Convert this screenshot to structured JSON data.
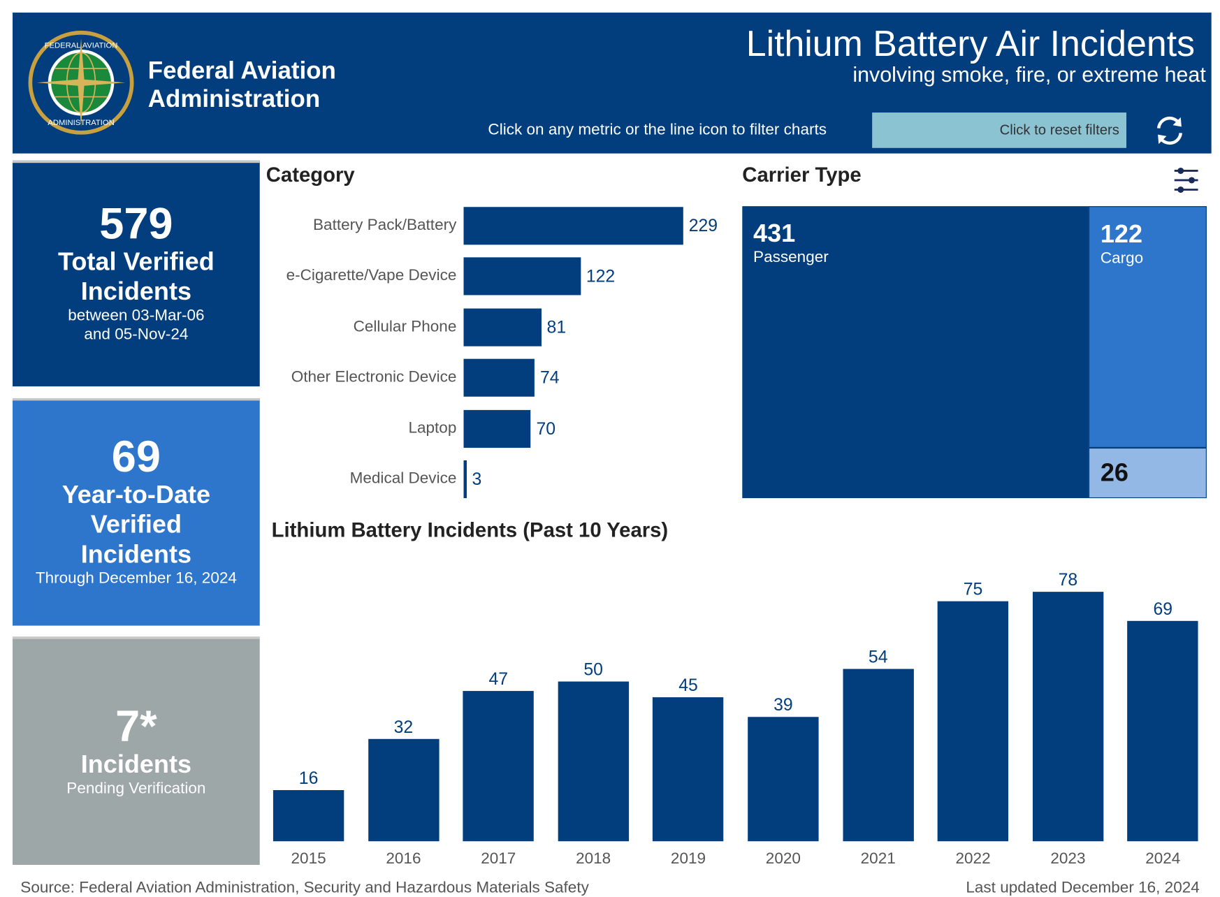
{
  "header": {
    "org_line1": "Federal Aviation",
    "org_line2": "Administration",
    "logo_text": "FEDERAL AVIATION ADMINISTRATION",
    "title": "Lithium Battery Air Incidents",
    "subtitle": "involving smoke, fire, or extreme heat",
    "instruction": "Click on any metric or the line icon to filter charts",
    "reset_label": "Click to reset filters",
    "reset_icon": "refresh-icon"
  },
  "colors": {
    "navy": "#023e7d",
    "blue": "#2e75cc",
    "light_blue": "#94b8e6",
    "grey": "#9ea7a8",
    "reset_bg": "#8cc3d3"
  },
  "metrics": [
    {
      "value": "579",
      "label1": "Total Verified",
      "label2": "Incidents",
      "sub1": "between 03-Mar-06",
      "sub2": "and 05-Nov-24"
    },
    {
      "value": "69",
      "label1": "Year-to-Date",
      "label2": "Verified",
      "label3": "Incidents",
      "sub1": "Through December 16, 2024"
    },
    {
      "value": "7*",
      "label1": "Incidents",
      "sub1": "Pending Verification"
    }
  ],
  "carrier": {
    "title": "Carrier Type",
    "filter_icon": "sliders-icon",
    "passenger": {
      "value": "431",
      "label": "Passenger"
    },
    "cargo": {
      "value": "122",
      "label": "Cargo"
    },
    "other": {
      "value": "26"
    }
  },
  "chart_data": [
    {
      "type": "bar",
      "orientation": "horizontal",
      "title": "Category",
      "categories": [
        "Battery Pack/Battery",
        "e-Cigarette/Vape Device",
        "Cellular Phone",
        "Other Electronic Device",
        "Laptop",
        "Medical Device"
      ],
      "values": [
        229,
        122,
        81,
        74,
        70,
        3
      ]
    },
    {
      "type": "bar",
      "title": "Lithium Battery Incidents (Past 10 Years)",
      "categories": [
        "2015",
        "2016",
        "2017",
        "2018",
        "2019",
        "2020",
        "2021",
        "2022",
        "2023",
        "2024"
      ],
      "values": [
        16,
        32,
        47,
        50,
        45,
        39,
        54,
        75,
        78,
        69
      ]
    }
  ],
  "footer": {
    "source": "Source: Federal Aviation Administration, Security and Hazardous Materials Safety",
    "updated": "Last updated December 16, 2024"
  }
}
